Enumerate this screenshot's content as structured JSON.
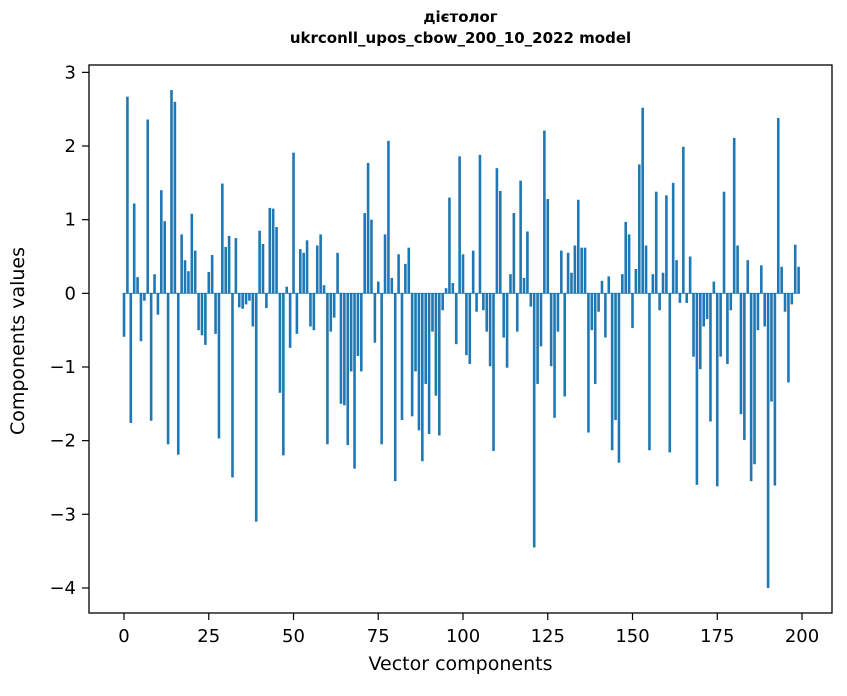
{
  "chart_data": {
    "type": "bar",
    "title_line1": "дієтолог",
    "title_line2": "ukrconll_upos_cbow_200_10_2022 model",
    "xlabel": "Vector components",
    "ylabel": "Components values",
    "bar_color": "#1f77b4",
    "axis_color": "#000000",
    "background_color": "#ffffff",
    "grid": false,
    "legend": null,
    "xticks": [
      0,
      25,
      50,
      75,
      100,
      125,
      150,
      175,
      200
    ],
    "yticks": [
      3,
      2,
      1,
      0,
      -1,
      -2,
      -3,
      -4
    ],
    "xlim": [
      -10.33,
      208.85
    ],
    "ylim": [
      -4.34,
      3.1
    ],
    "n_components": 200,
    "values": [
      -0.59,
      2.67,
      -1.76,
      1.22,
      0.22,
      -0.65,
      -0.1,
      2.36,
      -1.73,
      0.26,
      -0.29,
      1.4,
      0.98,
      -2.05,
      2.76,
      2.6,
      -2.19,
      0.8,
      0.45,
      0.3,
      1.08,
      0.58,
      -0.5,
      -0.57,
      -0.7,
      0.29,
      0.52,
      -0.55,
      -1.97,
      1.49,
      0.63,
      0.78,
      -2.5,
      0.75,
      -0.19,
      -0.21,
      -0.15,
      -0.1,
      -0.45,
      -3.1,
      0.85,
      0.67,
      -0.2,
      1.16,
      1.15,
      0.9,
      -1.35,
      -2.2,
      0.09,
      -0.74,
      1.91,
      -0.55,
      0.6,
      0.55,
      0.72,
      -0.45,
      -0.5,
      0.65,
      0.8,
      0.11,
      -2.05,
      -0.52,
      -0.33,
      0.55,
      -1.5,
      -1.52,
      -2.06,
      -1.06,
      -2.38,
      -0.85,
      -1.06,
      1.09,
      1.77,
      1.0,
      -0.67,
      0.16,
      -2.05,
      0.8,
      2.07,
      0.21,
      -2.55,
      0.53,
      -1.72,
      0.4,
      0.62,
      -1.67,
      -1.06,
      -1.86,
      -2.28,
      -1.23,
      -1.91,
      -0.52,
      -1.39,
      -1.93,
      -0.23,
      0.07,
      1.3,
      0.14,
      -0.69,
      1.86,
      0.53,
      -0.84,
      -0.96,
      0.58,
      -0.25,
      1.88,
      -0.23,
      -0.52,
      -0.99,
      -2.14,
      1.7,
      1.39,
      -0.6,
      -1.01,
      0.26,
      1.09,
      -0.52,
      1.53,
      0.21,
      0.84,
      -0.18,
      -3.45,
      -1.23,
      -0.72,
      2.21,
      1.28,
      -0.99,
      -1.69,
      -0.52,
      0.58,
      -1.4,
      0.55,
      0.28,
      0.65,
      1.27,
      0.62,
      0.62,
      -1.89,
      -0.5,
      -1.23,
      -0.25,
      0.17,
      -0.6,
      0.23,
      -2.13,
      -1.72,
      -2.3,
      0.26,
      0.97,
      0.8,
      -0.47,
      0.33,
      1.75,
      2.52,
      0.65,
      -2.13,
      0.26,
      1.38,
      -0.23,
      0.28,
      1.33,
      -2.16,
      1.5,
      0.45,
      -0.13,
      1.99,
      -0.13,
      0.5,
      -0.86,
      -2.6,
      -1.03,
      -0.45,
      -0.35,
      -1.74,
      0.16,
      -2.62,
      -0.86,
      1.38,
      -0.96,
      -0.23,
      2.11,
      0.65,
      -1.64,
      -1.99,
      0.45,
      -2.55,
      -2.32,
      -0.5,
      0.38,
      -0.45,
      -4.0,
      -1.47,
      -2.61,
      2.38,
      0.36,
      -0.25,
      -1.21,
      -0.15,
      0.66,
      0.36
    ]
  }
}
